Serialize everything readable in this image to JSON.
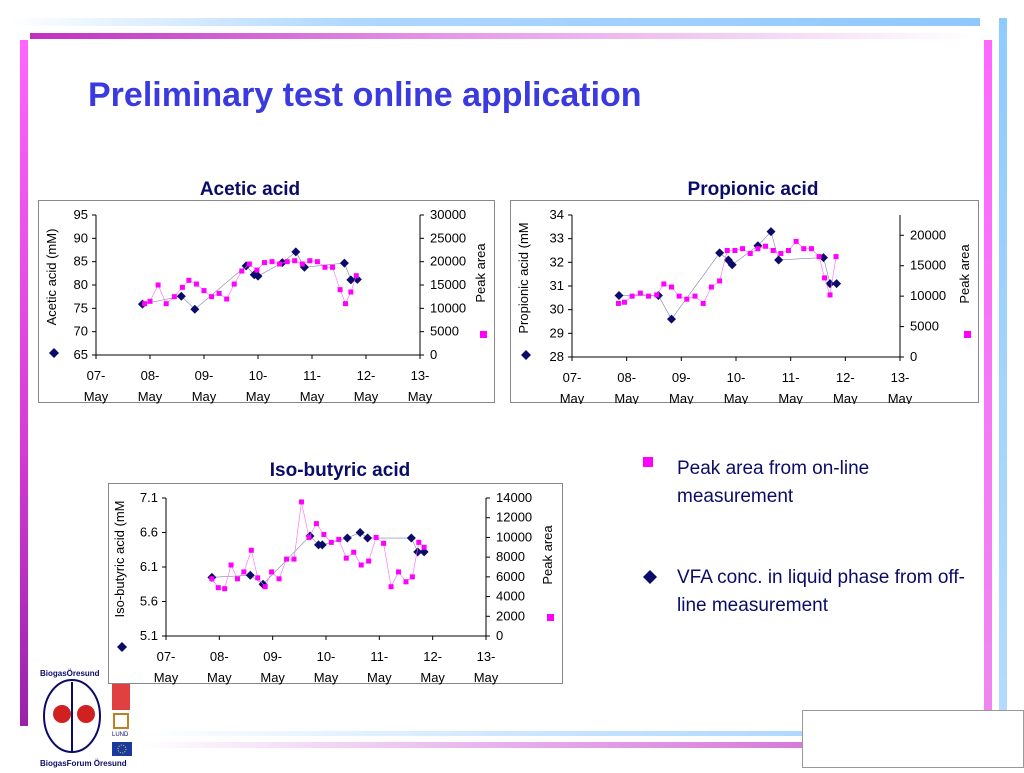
{
  "slide": {
    "title": "Preliminary test online application",
    "colors": {
      "title": "#3a3adf",
      "navy": "#0b0b6a",
      "magenta": "#ff00ff",
      "accent_bar": "#d9a3e8"
    }
  },
  "legend": {
    "peak": {
      "label": "Peak area from on-line measurement",
      "icon": "magenta-square-icon"
    },
    "vfa": {
      "label": "VFA conc. in liquid phase from off-line measurement",
      "icon": "navy-diamond-icon"
    }
  },
  "logos": {
    "biogas_top": "BiogasÖresund",
    "biogas_bottom": "BiogasForum Öresund",
    "lund": "LUND"
  },
  "chart_data": [
    {
      "type": "scatter",
      "title": "Acetic acid",
      "ylabel": "Acetic acid (mM)",
      "y2label": "Peak area",
      "x_ticks": [
        "07-May",
        "08-May",
        "09-May",
        "10-May",
        "11-May",
        "12-May",
        "13-May"
      ],
      "ylim": [
        65,
        95
      ],
      "y_ticks": [
        65,
        70,
        75,
        80,
        85,
        90,
        95
      ],
      "y2lim": [
        0,
        30000
      ],
      "y2_ticks": [
        0,
        5000,
        10000,
        15000,
        20000,
        25000,
        30000
      ],
      "grid": false,
      "series": [
        {
          "axis": "left",
          "marker": "diamond",
          "color": "#0b0b6a",
          "x": [
            0.86,
            1.58,
            1.83,
            2.78,
            2.93,
            3.0,
            3.45,
            3.7,
            3.86,
            4.6,
            4.72,
            4.84
          ],
          "y": [
            75.9,
            77.6,
            74.8,
            84.1,
            82.2,
            81.9,
            84.8,
            87.1,
            83.8,
            84.7,
            81.1,
            81.2
          ]
        },
        {
          "axis": "right",
          "marker": "square",
          "color": "#ff00ff",
          "line": true,
          "x": [
            0.9,
            1.0,
            1.15,
            1.3,
            1.45,
            1.6,
            1.72,
            1.86,
            2.0,
            2.14,
            2.28,
            2.42,
            2.56,
            2.7,
            2.84,
            2.98,
            3.12,
            3.26,
            3.4,
            3.54,
            3.68,
            3.82,
            3.96,
            4.1,
            4.24,
            4.38,
            4.52,
            4.62,
            4.72,
            4.82
          ],
          "y": [
            11000,
            11500,
            15000,
            11000,
            12500,
            14500,
            16000,
            15200,
            13800,
            12500,
            13200,
            12000,
            15200,
            18000,
            19500,
            18200,
            19800,
            20000,
            19500,
            20000,
            20200,
            19500,
            20200,
            20000,
            18800,
            18800,
            14000,
            11000,
            13500,
            17000
          ]
        }
      ]
    },
    {
      "type": "scatter",
      "title": "Propionic acid",
      "ylabel": "Propionic acid (mM",
      "y2label": "Peak area",
      "x_ticks": [
        "07-May",
        "08-May",
        "09-May",
        "10-May",
        "11-May",
        "12-May",
        "13-May"
      ],
      "ylim": [
        28,
        34
      ],
      "y_ticks": [
        28,
        29,
        30,
        31,
        32,
        33,
        34
      ],
      "y2lim": [
        0,
        23333
      ],
      "y2_ticks": [
        0,
        5000,
        10000,
        15000,
        20000
      ],
      "grid": false,
      "series": [
        {
          "axis": "left",
          "marker": "diamond",
          "color": "#0b0b6a",
          "x": [
            0.86,
            1.58,
            1.82,
            2.7,
            2.86,
            2.93,
            3.4,
            3.64,
            3.78,
            4.6,
            4.72,
            4.84
          ],
          "y": [
            30.6,
            30.6,
            29.6,
            32.4,
            32.1,
            31.9,
            32.7,
            33.3,
            32.1,
            32.2,
            31.1,
            31.1
          ]
        },
        {
          "axis": "right",
          "marker": "square",
          "color": "#ff00ff",
          "line": true,
          "x": [
            0.85,
            0.96,
            1.1,
            1.25,
            1.4,
            1.55,
            1.68,
            1.82,
            1.96,
            2.1,
            2.25,
            2.4,
            2.55,
            2.7,
            2.84,
            2.98,
            3.12,
            3.26,
            3.4,
            3.54,
            3.68,
            3.82,
            3.96,
            4.1,
            4.24,
            4.38,
            4.52,
            4.62,
            4.72,
            4.83
          ],
          "y": [
            8800,
            9000,
            10000,
            10500,
            10000,
            10200,
            12000,
            11500,
            10000,
            9500,
            10000,
            8800,
            11500,
            12500,
            17500,
            17500,
            17800,
            17000,
            17800,
            18200,
            17500,
            17000,
            17500,
            19000,
            17800,
            17800,
            16500,
            13000,
            10200,
            16500
          ]
        }
      ]
    },
    {
      "type": "scatter",
      "title": "Iso-butyric acid",
      "ylabel": "Iso-butyric acid (mM",
      "y2label": "Peak area",
      "x_ticks": [
        "07-May",
        "08-May",
        "09-May",
        "10-May",
        "11-May",
        "12-May",
        "13-May"
      ],
      "ylim": [
        5.1,
        7.1
      ],
      "y_ticks": [
        5.1,
        5.6,
        6.1,
        6.6,
        7.1
      ],
      "y2lim": [
        0,
        14000
      ],
      "y2_ticks": [
        0,
        2000,
        4000,
        6000,
        8000,
        10000,
        12000,
        14000
      ],
      "grid": false,
      "series": [
        {
          "axis": "left",
          "marker": "diamond",
          "color": "#0b0b6a",
          "x": [
            0.86,
            1.58,
            1.82,
            2.7,
            2.86,
            2.93,
            3.4,
            3.64,
            3.78,
            4.6,
            4.72,
            4.84
          ],
          "y": [
            5.95,
            5.98,
            5.85,
            6.55,
            6.42,
            6.42,
            6.52,
            6.6,
            6.52,
            6.52,
            6.32,
            6.32
          ]
        },
        {
          "axis": "right",
          "marker": "square",
          "color": "#ff00ff",
          "line": true,
          "x": [
            0.86,
            0.98,
            1.1,
            1.22,
            1.34,
            1.46,
            1.6,
            1.72,
            1.86,
            1.98,
            2.12,
            2.26,
            2.4,
            2.54,
            2.68,
            2.82,
            2.96,
            3.1,
            3.24,
            3.38,
            3.52,
            3.66,
            3.8,
            3.94,
            4.08,
            4.22,
            4.36,
            4.5,
            4.62,
            4.74,
            4.84
          ],
          "y": [
            5800,
            4900,
            4800,
            7200,
            5800,
            6500,
            8700,
            5900,
            5000,
            6500,
            5800,
            7800,
            7800,
            13600,
            10000,
            11400,
            10300,
            9500,
            9800,
            7900,
            8500,
            7200,
            7600,
            10000,
            9400,
            5000,
            6500,
            5500,
            6000,
            9500,
            9000
          ]
        }
      ]
    }
  ]
}
